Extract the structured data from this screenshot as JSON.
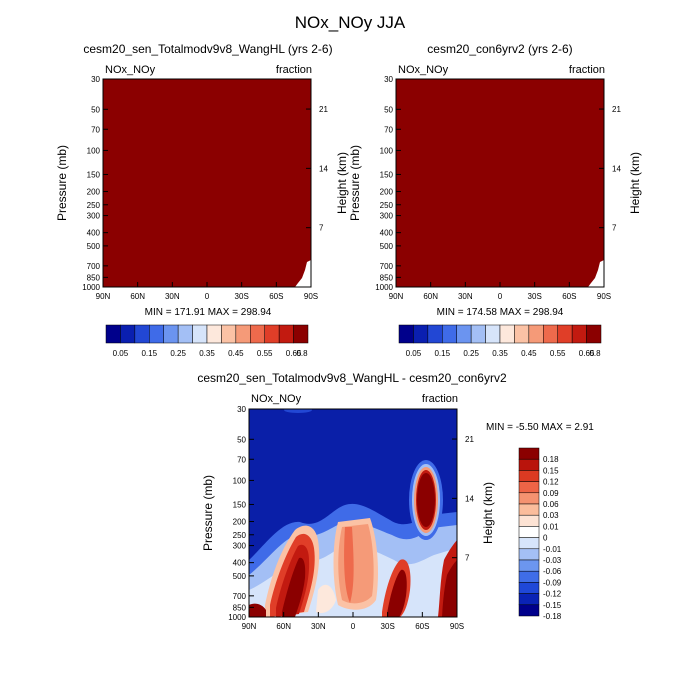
{
  "figure": {
    "title": "NOx_NOy JJA"
  },
  "palettes": {
    "abs": [
      "#00008b",
      "#0a1fb0",
      "#2247d4",
      "#3f6be8",
      "#6b94f0",
      "#a3bff5",
      "#d6e4fa",
      "#fde8dc",
      "#fbc2a5",
      "#f59a78",
      "#ee6a4c",
      "#e03e28",
      "#c21a10",
      "#8b0000"
    ],
    "diff": [
      "#00008b",
      "#0a23b5",
      "#1f48d8",
      "#3f6de8",
      "#6c96ef",
      "#a4c0f5",
      "#d7e5fb",
      "#ffffff",
      "#fde3d4",
      "#fbbd9c",
      "#f59270",
      "#ee6446",
      "#db3a22",
      "#b9140c",
      "#8b0000"
    ]
  },
  "chart_data": [
    {
      "type": "heatmap",
      "title": "cesm20_sen_Totalmodv9v8_WangHL (yrs 2-6)",
      "left_label": "NOx_NOy",
      "right_label": "fraction",
      "ylabel": "Pressure (mb)",
      "ylabel_right": "Height (km)",
      "x_ticks": [
        90,
        60,
        30,
        0,
        -30,
        -60,
        -90
      ],
      "x_tick_labels": [
        "90N",
        "60N",
        "30N",
        "0",
        "30S",
        "60S",
        "90S"
      ],
      "y_ticks": [
        30,
        50,
        70,
        100,
        150,
        200,
        250,
        300,
        400,
        500,
        700,
        850,
        1000
      ],
      "y_tick_labels": [
        "30",
        "50",
        "70",
        "100",
        "150",
        "200",
        "250",
        "300",
        "400",
        "500",
        "700",
        "850",
        "1000"
      ],
      "height_ticks": [
        7,
        14,
        21
      ],
      "height_tick_labels": [
        "7",
        "14",
        "21"
      ],
      "ylim": [
        1000,
        30
      ],
      "xlim": [
        90,
        -90
      ],
      "fill_value": "above 0.8 everywhere except missing surface region near 60S-90S",
      "min_max_text": "MIN = 171.91  MAX = 298.94",
      "colorbar": {
        "labels": [
          "0.05",
          "0.15",
          "0.25",
          "0.35",
          "0.45",
          "0.55",
          "0.65",
          "0.8"
        ]
      }
    },
    {
      "type": "heatmap",
      "title": "cesm20_con6yrv2 (yrs 2-6)",
      "left_label": "NOx_NOy",
      "right_label": "fraction",
      "ylabel": "Pressure (mb)",
      "ylabel_right": "Height (km)",
      "x_ticks": [
        90,
        60,
        30,
        0,
        -30,
        -60,
        -90
      ],
      "x_tick_labels": [
        "90N",
        "60N",
        "30N",
        "0",
        "30S",
        "60S",
        "90S"
      ],
      "y_ticks": [
        30,
        50,
        70,
        100,
        150,
        200,
        250,
        300,
        400,
        500,
        700,
        850,
        1000
      ],
      "y_tick_labels": [
        "30",
        "50",
        "70",
        "100",
        "150",
        "200",
        "250",
        "300",
        "400",
        "500",
        "700",
        "850",
        "1000"
      ],
      "height_ticks": [
        7,
        14,
        21
      ],
      "height_tick_labels": [
        "7",
        "14",
        "21"
      ],
      "ylim": [
        1000,
        30
      ],
      "xlim": [
        90,
        -90
      ],
      "min_max_text": "MIN = 174.58  MAX = 298.94",
      "colorbar": {
        "labels": [
          "0.05",
          "0.15",
          "0.25",
          "0.35",
          "0.45",
          "0.55",
          "0.65",
          "0.8"
        ]
      }
    },
    {
      "type": "heatmap",
      "title": "cesm20_sen_Totalmodv9v8_WangHL - cesm20_con6yrv2",
      "left_label": "NOx_NOy",
      "right_label": "fraction",
      "ylabel": "Pressure (mb)",
      "ylabel_right": "Height (km)",
      "x_ticks": [
        90,
        60,
        30,
        0,
        -30,
        -60,
        -90
      ],
      "x_tick_labels": [
        "90N",
        "60N",
        "30N",
        "0",
        "30S",
        "60S",
        "90S"
      ],
      "y_ticks": [
        30,
        50,
        70,
        100,
        150,
        200,
        250,
        300,
        400,
        500,
        700,
        850,
        1000
      ],
      "y_tick_labels": [
        "30",
        "50",
        "70",
        "100",
        "150",
        "200",
        "250",
        "300",
        "400",
        "500",
        "700",
        "850",
        "1000"
      ],
      "height_ticks": [
        7,
        14,
        21
      ],
      "height_tick_labels": [
        "7",
        "14",
        "21"
      ],
      "ylim": [
        1000,
        30
      ],
      "xlim": [
        90,
        -90
      ],
      "min_max_text": "MIN = -5.50  MAX =   2.91",
      "colorbar": {
        "labels": [
          "0.18",
          "0.15",
          "0.12",
          "0.09",
          "0.06",
          "0.03",
          "0.01",
          "0",
          "-0.01",
          "-0.03",
          "-0.06",
          "-0.09",
          "-0.12",
          "-0.15",
          "-0.18"
        ]
      }
    }
  ]
}
